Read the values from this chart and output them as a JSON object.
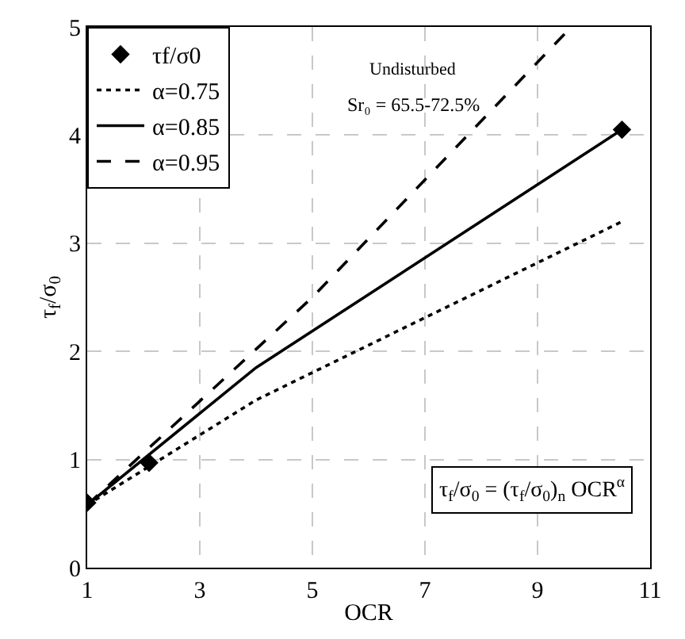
{
  "chart_data": {
    "type": "line",
    "xlabel": "OCR",
    "ylabel": "τ$_{f}$/σ$_{0}$",
    "xlim": [
      1,
      11
    ],
    "xticks": [
      1,
      3,
      5,
      7,
      9,
      11
    ],
    "ylim": [
      0,
      5
    ],
    "yticks": [
      0,
      1,
      2,
      3,
      4,
      5
    ],
    "grid": true,
    "legend": "top left",
    "series": [
      {
        "name": "τf/σ0",
        "type": "scatter",
        "marker": "diamond",
        "color": "#000000",
        "x": [
          1,
          2.1,
          10.5
        ],
        "values": [
          0.6,
          0.97,
          4.05
        ]
      },
      {
        "name": "α=0.75",
        "line_style": "dotted",
        "color": "#000000",
        "x": [
          1,
          4,
          10.5
        ],
        "values": [
          0.58,
          1.55,
          3.2
        ]
      },
      {
        "name": "α=0.85",
        "line_style": "solid",
        "color": "#000000",
        "x": [
          1,
          4,
          10.5
        ],
        "values": [
          0.58,
          1.85,
          4.05
        ]
      },
      {
        "name": "α=0.95",
        "line_style": "dashed",
        "color": "#000000",
        "x": [
          1,
          5,
          9.6
        ],
        "values": [
          0.58,
          2.5,
          5
        ]
      }
    ],
    "annotations": [
      {
        "text": "Undisturbed"
      },
      {
        "text": "Sr₀ = 65.5-72.5%"
      },
      {
        "text": "τ$_{f}$/σ$_{0}$ = (τ$_{f}$/σ$_{0}$)$_{n}$ OCR$^{α}$"
      }
    ]
  }
}
